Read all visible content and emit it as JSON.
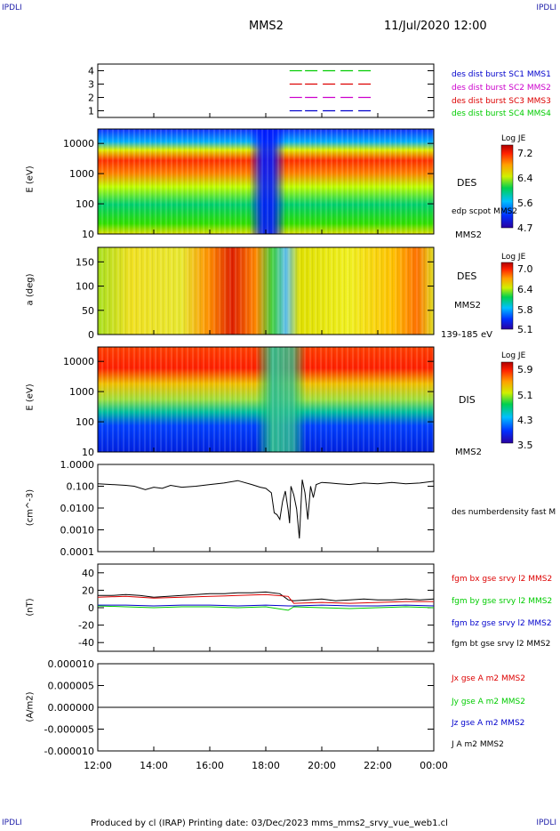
{
  "corners": {
    "tl": "IPDLI",
    "tr": "IPDLI",
    "bl": "IPDLI",
    "br": "IPDLI"
  },
  "header": {
    "spacecraft": "MMS2",
    "datetime": "11/Jul/2020 12:00"
  },
  "footer": {
    "text": "Produced by cl (IRAP)   Printing date: 03/Dec/2023   mms_mms2_srvy_vue_web1.cl"
  },
  "colors": {
    "red": "#dd0000",
    "green": "#00cc00",
    "blue": "#0000cc",
    "magenta": "#cc00cc",
    "black": "#000000"
  },
  "chart_data": [
    {
      "id": "burst",
      "type": "line",
      "ylim": [
        0.5,
        4.5
      ],
      "yticks": [
        "1",
        "2",
        "3",
        "4"
      ],
      "legend": [
        {
          "label": "des dist burst SC1 MMS1",
          "color": "#0000cc"
        },
        {
          "label": "des dist burst SC2 MMS2",
          "color": "#cc00cc"
        },
        {
          "label": "des dist burst SC3 MMS3",
          "color": "#dd0000"
        },
        {
          "label": "des dist burst SC4 MMS4",
          "color": "#00cc00"
        }
      ],
      "series": [
        {
          "level": 1,
          "color": "#0000cc",
          "segments": [
            [
              18.85,
              19.3
            ],
            [
              19.4,
              21.9
            ]
          ]
        },
        {
          "level": 2,
          "color": "#cc00cc",
          "segments": [
            [
              18.85,
              19.3
            ],
            [
              19.4,
              21.9
            ]
          ]
        },
        {
          "level": 3,
          "color": "#dd0000",
          "segments": [
            [
              18.85,
              19.3
            ],
            [
              19.4,
              21.9
            ]
          ]
        },
        {
          "level": 4,
          "color": "#00cc00",
          "segments": [
            [
              18.85,
              19.3
            ],
            [
              19.4,
              21.9
            ]
          ]
        }
      ]
    },
    {
      "id": "des-energy",
      "type": "heatmap",
      "ylabel": "E (eV)",
      "ylim": [
        10,
        30000
      ],
      "scale": "log",
      "yticks": [
        "10",
        "100",
        "1000",
        "10000"
      ],
      "labels": [
        "DES",
        "edp scpot MMS2",
        "MMS2"
      ],
      "colorbar": {
        "title": "Log JE",
        "ticks": [
          "7.2",
          "6.4",
          "5.6",
          "4.7"
        ],
        "range": [
          4.7,
          7.4
        ]
      }
    },
    {
      "id": "des-pitch",
      "type": "heatmap",
      "ylabel": "a (deg)",
      "ylim": [
        0,
        180
      ],
      "yticks": [
        "0",
        "50",
        "100",
        "150"
      ],
      "labels": [
        "DES",
        "MMS2",
        "139-185 eV"
      ],
      "colorbar": {
        "title": "Log JE",
        "ticks": [
          "7.0",
          "6.4",
          "5.8",
          "5.1"
        ],
        "range": [
          5.1,
          7.2
        ]
      }
    },
    {
      "id": "dis-energy",
      "type": "heatmap",
      "ylabel": "E (eV)",
      "ylim": [
        10,
        30000
      ],
      "scale": "log",
      "yticks": [
        "10",
        "100",
        "1000",
        "10000"
      ],
      "labels": [
        "DIS",
        "MMS2"
      ],
      "colorbar": {
        "title": "Log JE",
        "ticks": [
          "5.9",
          "5.1",
          "4.3",
          "3.5"
        ],
        "range": [
          3.5,
          6.2
        ]
      }
    },
    {
      "id": "density",
      "type": "line",
      "ylabel": "(cm^-3)",
      "ylim": [
        0.0001,
        1.0
      ],
      "scale": "log",
      "yticks": [
        "0.0001",
        "0.0010",
        "0.0100",
        "0.100",
        "1.0000"
      ],
      "legend": [
        {
          "label": "des numberdensity fast M",
          "color": "#000000"
        }
      ],
      "series": [
        {
          "name": "des numberdensity fast M",
          "color": "#000000",
          "x": [
            12.0,
            12.5,
            13.0,
            13.3,
            13.7,
            14.0,
            14.3,
            14.6,
            15.0,
            15.5,
            16.0,
            16.5,
            17.0,
            17.5,
            17.8,
            18.0,
            18.2,
            18.3,
            18.4,
            18.5,
            18.6,
            18.7,
            18.8,
            18.85,
            18.9,
            19.0,
            19.1,
            19.2,
            19.3,
            19.4,
            19.5,
            19.6,
            19.7,
            19.8,
            20.0,
            20.3,
            20.6,
            21.0,
            21.5,
            22.0,
            22.5,
            23.0,
            23.5,
            24.0
          ],
          "y": [
            0.13,
            0.12,
            0.11,
            0.1,
            0.07,
            0.09,
            0.08,
            0.11,
            0.09,
            0.1,
            0.12,
            0.14,
            0.18,
            0.12,
            0.09,
            0.08,
            0.05,
            0.006,
            0.005,
            0.003,
            0.02,
            0.06,
            0.008,
            0.002,
            0.1,
            0.04,
            0.009,
            0.0004,
            0.2,
            0.05,
            0.003,
            0.1,
            0.03,
            0.12,
            0.15,
            0.14,
            0.13,
            0.12,
            0.14,
            0.13,
            0.15,
            0.13,
            0.14,
            0.17
          ]
        }
      ]
    },
    {
      "id": "bfield",
      "type": "line",
      "ylabel": "(nT)",
      "ylim": [
        -50,
        50
      ],
      "yticks": [
        "-40",
        "-20",
        "0",
        "20",
        "40"
      ],
      "legend": [
        {
          "label": "fgm bx gse srvy l2 MMS2",
          "color": "#dd0000"
        },
        {
          "label": "fgm by gse srvy l2 MMS2",
          "color": "#00cc00"
        },
        {
          "label": "fgm bz gse srvy l2 MMS2",
          "color": "#0000cc"
        },
        {
          "label": "fgm bt gse srvy l2 MMS2",
          "color": "#000000"
        }
      ],
      "series": [
        {
          "name": "fgm bt gse srvy l2 MMS2",
          "color": "#000000",
          "x": [
            12.0,
            12.5,
            13.0,
            13.5,
            14.0,
            14.5,
            15.0,
            15.5,
            16.0,
            16.5,
            17.0,
            17.5,
            18.0,
            18.5,
            18.8,
            19.0,
            19.5,
            20.0,
            20.5,
            21.0,
            21.5,
            22.0,
            22.5,
            23.0,
            23.5,
            24.0
          ],
          "y": [
            14,
            14,
            15,
            14,
            12,
            13,
            14,
            15,
            16,
            16,
            17,
            17,
            18,
            16,
            9,
            8,
            9,
            10,
            8,
            9,
            10,
            9,
            9,
            10,
            9,
            10
          ]
        },
        {
          "name": "fgm bx gse srvy l2 MMS2",
          "color": "#dd0000",
          "x": [
            12.0,
            13.0,
            14.0,
            15.0,
            16.0,
            17.0,
            18.0,
            18.8,
            19.0,
            20.0,
            21.0,
            22.0,
            23.0,
            24.0
          ],
          "y": [
            12,
            13,
            11,
            12,
            13,
            14,
            15,
            13,
            5,
            6,
            5,
            6,
            7,
            7
          ]
        },
        {
          "name": "fgm by gse srvy l2 MMS2",
          "color": "#00cc00",
          "x": [
            12.0,
            13.0,
            14.0,
            15.0,
            16.0,
            17.0,
            18.0,
            18.8,
            19.0,
            20.0,
            21.0,
            22.0,
            23.0,
            24.0
          ],
          "y": [
            2,
            1,
            0,
            1,
            1,
            0,
            1,
            -3,
            1,
            0,
            -1,
            0,
            1,
            0
          ]
        },
        {
          "name": "fgm bz gse srvy l2 MMS2",
          "color": "#0000cc",
          "x": [
            12.0,
            13.0,
            14.0,
            15.0,
            16.0,
            17.0,
            18.0,
            18.8,
            19.0,
            20.0,
            21.0,
            22.0,
            23.0,
            24.0
          ],
          "y": [
            3,
            3,
            2,
            3,
            3,
            2,
            3,
            2,
            2,
            3,
            2,
            2,
            3,
            2
          ]
        }
      ]
    },
    {
      "id": "current",
      "type": "line",
      "ylabel": "(A/m2)",
      "ylim": [
        -1e-05,
        1e-05
      ],
      "yticks": [
        "-0.000010",
        "-0.000005",
        "0.000000",
        "0.000005",
        "0.000010"
      ],
      "legend": [
        {
          "label": "Jx gse A m2 MMS2",
          "color": "#dd0000"
        },
        {
          "label": "Jy gse A m2 MMS2",
          "color": "#00cc00"
        },
        {
          "label": "Jz gse A m2 MMS2",
          "color": "#0000cc"
        },
        {
          "label": "J A m2 MMS2",
          "color": "#000000"
        }
      ],
      "series": [
        {
          "name": "J A m2 MMS2",
          "color": "#000000",
          "x": [
            12.0,
            24.0
          ],
          "y": [
            0.0,
            0.0
          ]
        }
      ]
    }
  ],
  "xaxis": {
    "ticks": [
      "12:00",
      "14:00",
      "16:00",
      "18:00",
      "20:00",
      "22:00",
      "00:00"
    ],
    "range": [
      12,
      24
    ]
  }
}
